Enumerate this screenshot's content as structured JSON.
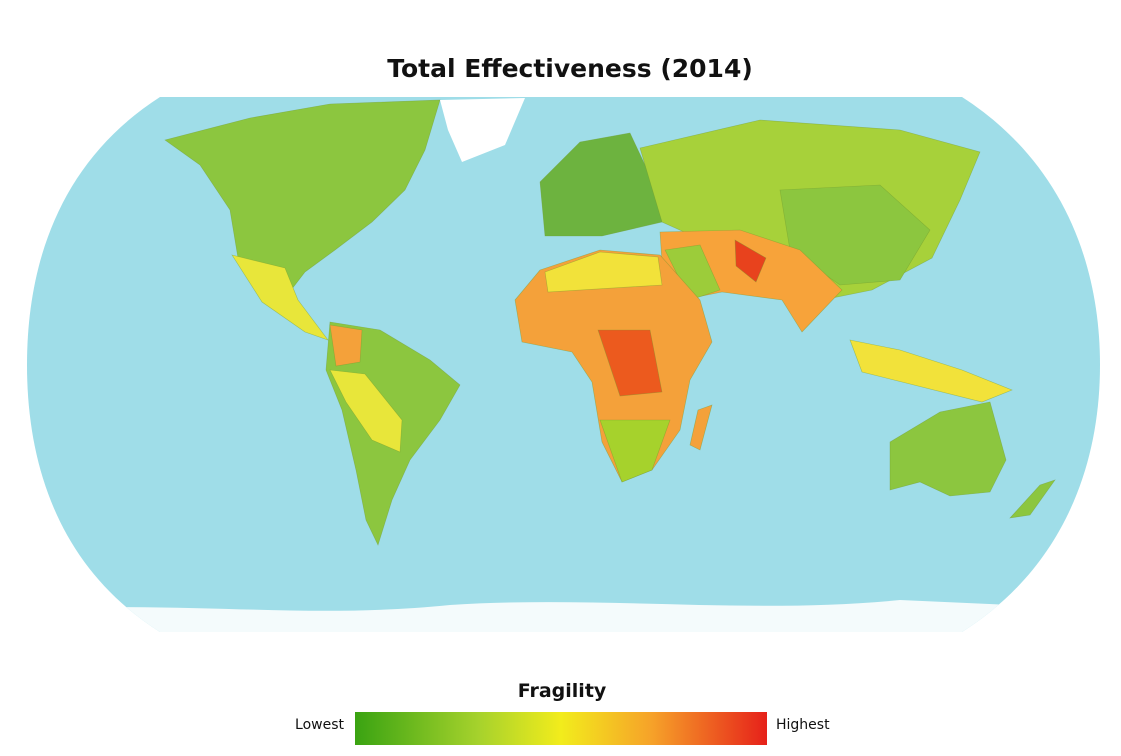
{
  "header": {
    "title": "Total Effectiveness (2014)"
  },
  "legend": {
    "title": "Fragility",
    "low_label": "Lowest",
    "high_label": "Highest"
  }
}
